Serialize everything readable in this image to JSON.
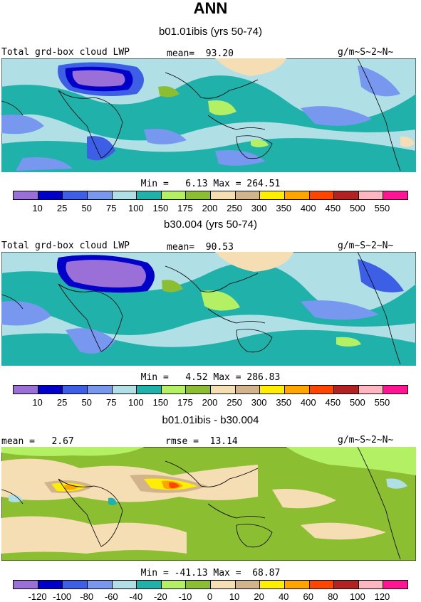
{
  "page": {
    "title": "ANN"
  },
  "palettes": {
    "abs": [
      "#9b6fd8",
      "#0000c8",
      "#3c5fe6",
      "#7898f0",
      "#b0e0e6",
      "#20b2aa",
      "#b4f064",
      "#8cbe32",
      "#f5deb3",
      "#d2b48c",
      "#ffee00",
      "#ffa500",
      "#ff4500",
      "#b22222",
      "#ffb6c1",
      "#ff1493"
    ],
    "diff": [
      "#9b6fd8",
      "#0000c8",
      "#3c5fe6",
      "#7898f0",
      "#b0e0e6",
      "#20b2aa",
      "#b4f064",
      "#8cbe32",
      "#f5deb3",
      "#d2b48c",
      "#ffee00",
      "#ffa500",
      "#ff4500",
      "#b22222",
      "#ffb6c1",
      "#ff1493"
    ]
  },
  "panels": [
    {
      "title": "b01.01ibis (yrs 50-74)",
      "left_label": "Total grd-box cloud LWP",
      "center_label": "mean=  93.20",
      "units": "g/m~S~2~N~",
      "stats": "Min =   6.13 Max = 264.51",
      "ticks": [
        "10",
        "25",
        "50",
        "75",
        "100",
        "150",
        "175",
        "200",
        "250",
        "300",
        "350",
        "400",
        "450",
        "500",
        "550"
      ]
    },
    {
      "title": "b30.004 (yrs 50-74)",
      "left_label": "Total grd-box cloud LWP",
      "center_label": "mean=  90.53",
      "units": "g/m~S~2~N~",
      "stats": "Min =   4.52 Max = 286.83",
      "ticks": [
        "10",
        "25",
        "50",
        "75",
        "100",
        "150",
        "175",
        "200",
        "250",
        "300",
        "350",
        "400",
        "450",
        "500",
        "550"
      ]
    },
    {
      "title": "b01.01ibis - b30.004",
      "left_label": "mean =   2.67",
      "center_label": "rmse =  13.14",
      "units": "g/m~S~2~N~",
      "stats": "Min = -41.13 Max =  68.87",
      "ticks": [
        "-120",
        "-100",
        "-80",
        "-60",
        "-40",
        "-20",
        "-10",
        "0",
        "10",
        "20",
        "40",
        "60",
        "80",
        "100",
        "120"
      ]
    }
  ]
}
